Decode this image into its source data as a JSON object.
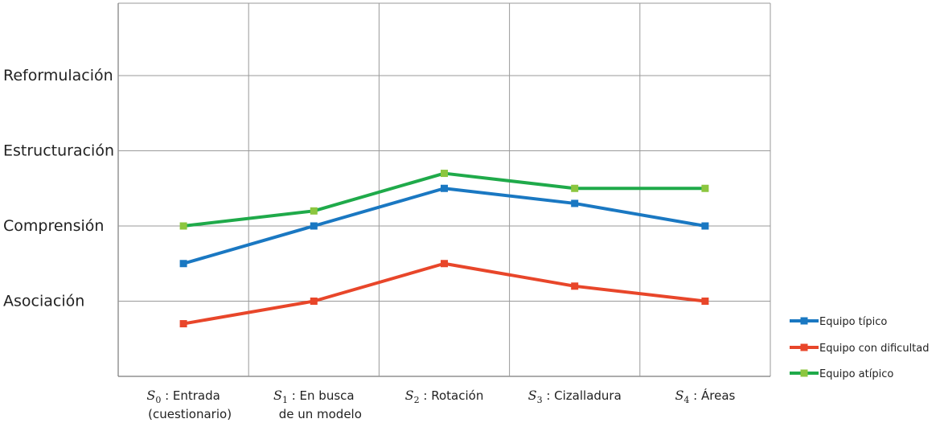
{
  "chart_data": {
    "type": "line",
    "title": "",
    "xlabel": "",
    "ylabel": "",
    "categories": [
      {
        "symbol": "S",
        "sub": "0",
        "line1": ": Entrada",
        "line2": "(cuestionario)"
      },
      {
        "symbol": "S",
        "sub": "1",
        "line1": ": En busca",
        "line2": "de un modelo"
      },
      {
        "symbol": "S",
        "sub": "2",
        "line1": ": Rotación",
        "line2": ""
      },
      {
        "symbol": "S",
        "sub": "3",
        "line1": ": Cizalladura",
        "line2": ""
      },
      {
        "symbol": "S",
        "sub": "4",
        "line1": ": Áreas",
        "line2": ""
      }
    ],
    "y_levels": [
      "Asociación",
      "Comprensión",
      "Estructuración",
      "Reformulación"
    ],
    "ylim": [
      0,
      4
    ],
    "grid": true,
    "legend_position": "bottom-right",
    "series": [
      {
        "name": "Equipo típico",
        "color": "#1a78c2",
        "marker_color": "#1a78c2",
        "values": [
          1.5,
          2,
          2.5,
          2.3,
          2
        ]
      },
      {
        "name": "Equipo con dificultad",
        "color": "#e8462a",
        "marker_color": "#e8462a",
        "values": [
          0.7,
          1,
          1.5,
          1.2,
          1
        ]
      },
      {
        "name": "Equipo atípico",
        "color": "#1faa4a",
        "marker_color": "#8cc63f",
        "values": [
          2,
          2.2,
          2.7,
          2.5,
          2.5
        ]
      }
    ]
  }
}
